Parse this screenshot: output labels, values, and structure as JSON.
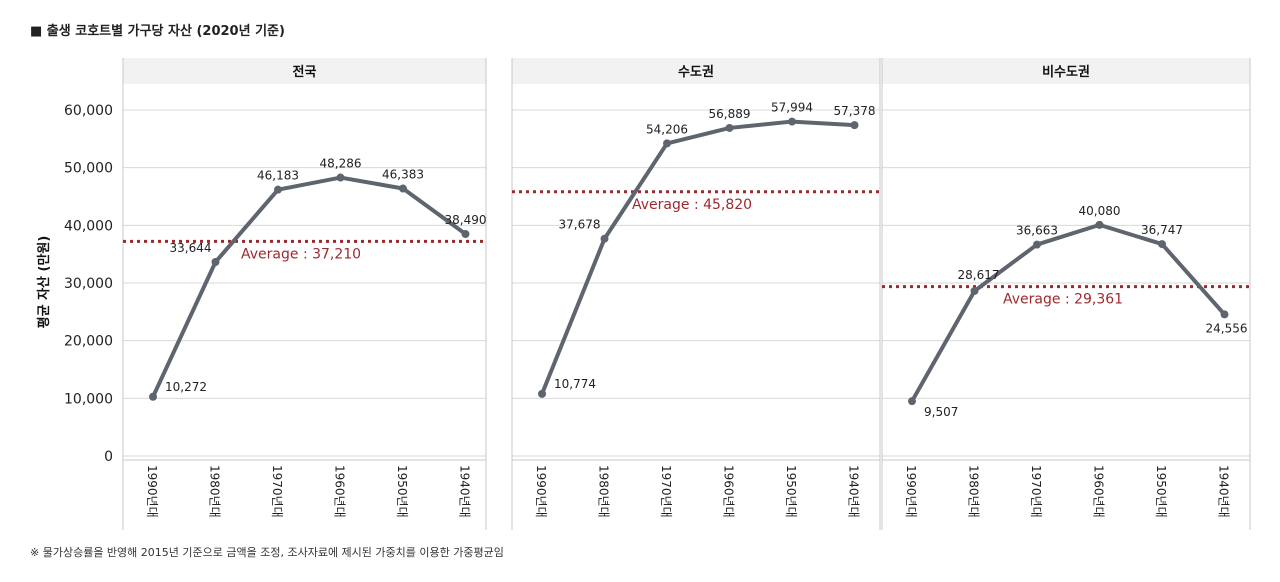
{
  "title": "■ 출생 코호트별 가구당 자산 (2020년 기준)",
  "footnote": "※ 물가상승률을 반영해 2015년 기준으로 금액을 조정, 조사자료에 제시된 가중치를 이용한 가중평균임",
  "colors": {
    "line": "#5f656e",
    "average": "#9b2a2f",
    "grid": "#d9d9d9",
    "header_bg": "#f2f2f2"
  },
  "chart_data": {
    "type": "line",
    "ylabel": "평균 자산 (만원)",
    "ylim": [
      0,
      60000
    ],
    "yticks": [
      0,
      10000,
      20000,
      30000,
      40000,
      50000,
      60000
    ],
    "ytick_labels": [
      "0",
      "10,000",
      "20,000",
      "30,000",
      "40,000",
      "50,000",
      "60,000"
    ],
    "categories": [
      "1990년대",
      "1980년대",
      "1970년대",
      "1960년대",
      "1950년대",
      "1940년대"
    ],
    "panels": [
      {
        "title": "전국",
        "values": [
          10272,
          33644,
          46183,
          48286,
          46383,
          38490
        ],
        "labels": [
          "10,272",
          "33,644",
          "46,183",
          "48,286",
          "46,383",
          "38,490"
        ],
        "average": 37210,
        "average_label": "Average : 37,210"
      },
      {
        "title": "수도권",
        "values": [
          10774,
          37678,
          54206,
          56889,
          57994,
          57378
        ],
        "labels": [
          "10,774",
          "37,678",
          "54,206",
          "56,889",
          "57,994",
          "57,378"
        ],
        "average": 45820,
        "average_label": "Average : 45,820"
      },
      {
        "title": "비수도권",
        "values": [
          9507,
          28617,
          36663,
          40080,
          36747,
          24556
        ],
        "labels": [
          "9,507",
          "28,617",
          "36,663",
          "40,080",
          "36,747",
          "24,556"
        ],
        "average": 29361,
        "average_label": "Average : 29,361"
      }
    ]
  }
}
